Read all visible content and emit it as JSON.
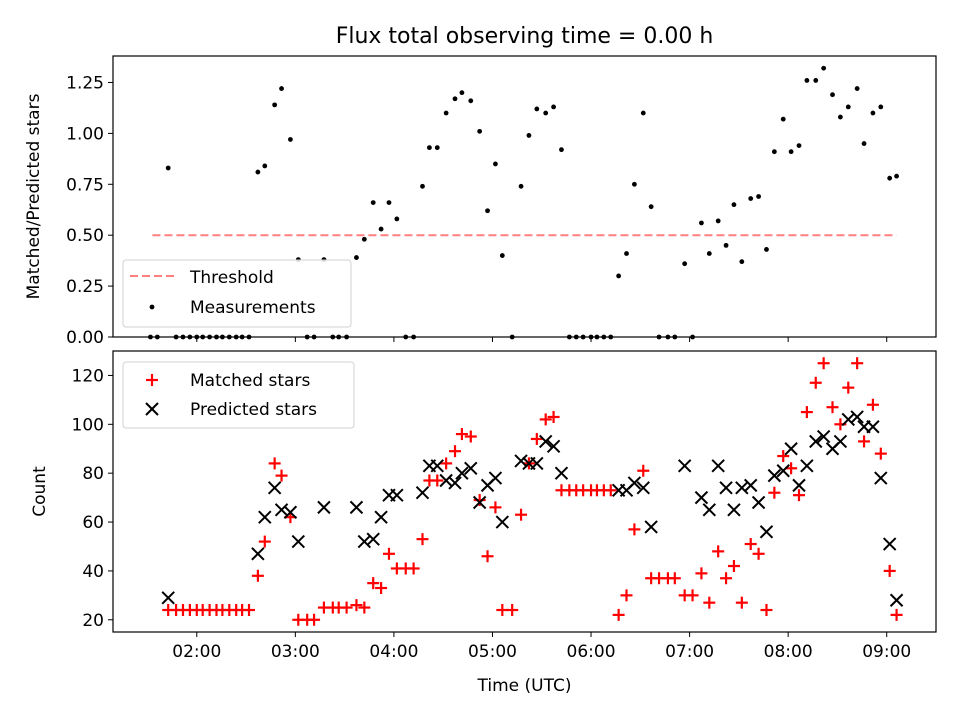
{
  "chart_data": [
    {
      "type": "scatter",
      "title": "Flux total observing time = 0.00 h",
      "xlabel": "",
      "ylabel": "Matched/Predicted stars",
      "xlim": [
        1.15,
        9.5
      ],
      "ylim": [
        0,
        1.38
      ],
      "yticks": [
        0.0,
        0.25,
        0.5,
        0.75,
        1.0,
        1.25
      ],
      "ytick_labels": [
        "0.00",
        "0.25",
        "0.50",
        "0.75",
        "1.00",
        "1.25"
      ],
      "xticks": [
        2,
        3,
        4,
        5,
        6,
        7,
        8,
        9
      ],
      "legend_position": "lower-left",
      "threshold": {
        "name": "Threshold",
        "value": 0.5,
        "x_range": [
          1.55,
          9.1
        ],
        "color": "#ff7f7f"
      },
      "series": [
        {
          "name": "Measurements",
          "color": "#000000",
          "x": [
            1.53,
            1.6,
            1.71,
            1.79,
            1.86,
            1.93,
            2.0,
            2.06,
            2.13,
            2.2,
            2.26,
            2.33,
            2.4,
            2.46,
            2.53,
            2.62,
            2.69,
            2.79,
            2.86,
            2.95,
            3.03,
            3.12,
            3.19,
            3.29,
            3.38,
            3.44,
            3.52,
            3.62,
            3.7,
            3.79,
            3.87,
            3.95,
            4.03,
            4.12,
            4.2,
            4.29,
            4.36,
            4.44,
            4.53,
            4.62,
            4.69,
            4.78,
            4.87,
            4.95,
            5.03,
            5.1,
            5.2,
            5.29,
            5.37,
            5.45,
            5.54,
            5.62,
            5.7,
            5.78,
            5.85,
            5.92,
            6.0,
            6.06,
            6.13,
            6.2,
            6.28,
            6.36,
            6.44,
            6.53,
            6.61,
            6.69,
            6.78,
            6.85,
            6.95,
            7.03,
            7.12,
            7.2,
            7.29,
            7.37,
            7.45,
            7.53,
            7.62,
            7.7,
            7.78,
            7.86,
            7.95,
            8.03,
            8.11,
            8.19,
            8.28,
            8.36,
            8.45,
            8.53,
            8.61,
            8.7,
            8.77,
            8.86,
            8.94,
            9.03,
            9.1
          ],
          "y": [
            0.0,
            0.0,
            0.83,
            0.0,
            0.0,
            0.0,
            0.0,
            0.0,
            0.0,
            0.0,
            0.0,
            0.0,
            0.0,
            0.0,
            0.0,
            0.81,
            0.84,
            1.14,
            1.22,
            0.97,
            0.38,
            0.0,
            0.0,
            0.38,
            0.0,
            0.0,
            0.0,
            0.39,
            0.48,
            0.66,
            0.53,
            0.66,
            0.58,
            0.0,
            0.0,
            0.74,
            0.93,
            0.93,
            1.1,
            1.17,
            1.2,
            1.16,
            1.01,
            0.62,
            0.85,
            0.4,
            0.0,
            0.74,
            0.99,
            1.12,
            1.1,
            1.13,
            0.92,
            0.0,
            0.0,
            0.0,
            0.0,
            0.0,
            0.0,
            0.0,
            0.3,
            0.41,
            0.75,
            1.1,
            0.64,
            0.0,
            0.0,
            0.0,
            0.36,
            0.0,
            0.56,
            0.41,
            0.57,
            0.45,
            0.65,
            0.37,
            0.68,
            0.69,
            0.43,
            0.91,
            1.07,
            0.91,
            0.94,
            1.26,
            1.26,
            1.32,
            1.19,
            1.08,
            1.13,
            1.22,
            0.95,
            1.1,
            1.13,
            0.78,
            0.79
          ]
        }
      ]
    },
    {
      "type": "scatter",
      "title": "",
      "xlabel": "Time (UTC)",
      "ylabel": "Count",
      "xlim": [
        1.15,
        9.5
      ],
      "ylim": [
        15,
        130
      ],
      "yticks": [
        20,
        40,
        60,
        80,
        100,
        120
      ],
      "xticks": [
        2,
        3,
        4,
        5,
        6,
        7,
        8,
        9
      ],
      "xtick_labels": [
        "02:00",
        "03:00",
        "04:00",
        "05:00",
        "06:00",
        "07:00",
        "08:00",
        "09:00"
      ],
      "legend_position": "upper-left",
      "series": [
        {
          "name": "Matched stars",
          "marker": "plus",
          "color": "#ff0000",
          "x": [
            1.71,
            1.79,
            1.86,
            1.93,
            2.0,
            2.06,
            2.13,
            2.2,
            2.26,
            2.33,
            2.4,
            2.46,
            2.53,
            2.62,
            2.69,
            2.79,
            2.86,
            2.95,
            3.03,
            3.12,
            3.19,
            3.29,
            3.38,
            3.44,
            3.52,
            3.62,
            3.7,
            3.79,
            3.87,
            3.95,
            4.03,
            4.12,
            4.2,
            4.29,
            4.36,
            4.44,
            4.53,
            4.62,
            4.69,
            4.78,
            4.87,
            4.95,
            5.03,
            5.1,
            5.2,
            5.29,
            5.37,
            5.45,
            5.54,
            5.62,
            5.7,
            5.78,
            5.85,
            5.92,
            6.0,
            6.06,
            6.13,
            6.2,
            6.28,
            6.36,
            6.44,
            6.53,
            6.61,
            6.69,
            6.78,
            6.85,
            6.95,
            7.03,
            7.12,
            7.2,
            7.29,
            7.37,
            7.45,
            7.53,
            7.62,
            7.7,
            7.78,
            7.86,
            7.95,
            8.03,
            8.11,
            8.19,
            8.28,
            8.36,
            8.45,
            8.53,
            8.61,
            8.7,
            8.77,
            8.86,
            8.94,
            9.03,
            9.1
          ],
          "y": [
            24,
            24,
            24,
            24,
            24,
            24,
            24,
            24,
            24,
            24,
            24,
            24,
            24,
            38,
            52,
            84,
            79,
            62,
            20,
            20,
            20,
            25,
            25,
            25,
            25,
            26,
            25,
            35,
            33,
            47,
            41,
            41,
            41,
            53,
            77,
            77,
            84,
            89,
            96,
            95,
            69,
            46,
            66,
            24,
            24,
            63,
            84,
            94,
            102,
            103,
            73,
            73,
            73,
            73,
            73,
            73,
            73,
            73,
            22,
            30,
            57,
            81,
            37,
            37,
            37,
            37,
            30,
            30,
            39,
            27,
            48,
            37,
            42,
            27,
            51,
            47,
            24,
            72,
            87,
            82,
            71,
            105,
            117,
            125,
            107,
            100,
            115,
            125,
            93,
            108,
            88,
            40,
            22
          ]
        },
        {
          "name": "Predicted stars",
          "marker": "x",
          "color": "#000000",
          "x": [
            1.71,
            2.62,
            2.69,
            2.79,
            2.86,
            2.95,
            3.03,
            3.29,
            3.62,
            3.7,
            3.79,
            3.87,
            3.95,
            4.03,
            4.29,
            4.36,
            4.44,
            4.53,
            4.62,
            4.69,
            4.78,
            4.87,
            4.95,
            5.03,
            5.1,
            5.29,
            5.37,
            5.45,
            5.54,
            5.62,
            5.7,
            6.28,
            6.36,
            6.44,
            6.53,
            6.61,
            6.95,
            7.12,
            7.2,
            7.29,
            7.37,
            7.45,
            7.53,
            7.62,
            7.7,
            7.78,
            7.86,
            7.95,
            8.03,
            8.11,
            8.19,
            8.28,
            8.36,
            8.45,
            8.53,
            8.61,
            8.7,
            8.77,
            8.86,
            8.94,
            9.03,
            9.1
          ],
          "y": [
            29,
            47,
            62,
            74,
            65,
            64,
            52,
            66,
            66,
            52,
            53,
            62,
            71,
            71,
            72,
            83,
            83,
            77,
            76,
            80,
            82,
            68,
            75,
            78,
            60,
            85,
            84,
            84,
            93,
            91,
            80,
            73,
            73,
            76,
            74,
            58,
            83,
            70,
            65,
            83,
            74,
            65,
            74,
            75,
            68,
            56,
            79,
            81,
            90,
            75,
            83,
            93,
            95,
            90,
            93,
            102,
            103,
            99,
            99,
            78,
            51,
            28
          ]
        }
      ]
    }
  ]
}
